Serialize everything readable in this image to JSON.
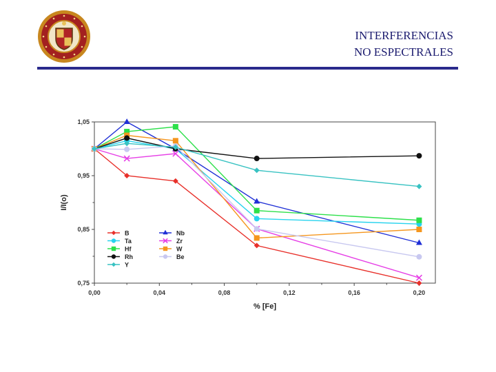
{
  "slide": {
    "title_line1": "INTERFERENCIAS",
    "title_line2": "NO ESPECTRALES"
  },
  "logo": {
    "name": "university-seal"
  },
  "colors": {
    "accent": "#2a2a8c"
  },
  "chart_data": {
    "type": "line",
    "title": "",
    "xlabel": "% [Fe]",
    "ylabel": "I/I(o)",
    "x": [
      0.0,
      0.02,
      0.05,
      0.1,
      0.2
    ],
    "xlim": [
      0.0,
      0.21
    ],
    "ylim": [
      0.75,
      1.05
    ],
    "xticks": [
      0.0,
      0.04,
      0.08,
      0.12,
      0.16,
      0.2
    ],
    "xtick_labels": [
      "0,00",
      "0,04",
      "0,08",
      "0,12",
      "0,16",
      "0,20"
    ],
    "yticks": [
      0.75,
      0.85,
      0.95,
      1.05
    ],
    "ytick_labels": [
      "0,75",
      "0,85",
      "0,95",
      "1,05"
    ],
    "grid": false,
    "legend_position": "bottom-left",
    "series": [
      {
        "name": "B",
        "color": "#e8302a",
        "marker": "diamond",
        "values": [
          1.0,
          0.95,
          0.94,
          0.82,
          0.75
        ]
      },
      {
        "name": "Nb",
        "color": "#1f2fd6",
        "marker": "triangle",
        "values": [
          1.0,
          1.05,
          1.0,
          0.902,
          0.825
        ]
      },
      {
        "name": "Ta",
        "color": "#27d3ee",
        "marker": "circle",
        "values": [
          1.0,
          1.015,
          1.0,
          0.87,
          0.86
        ]
      },
      {
        "name": "Zr",
        "color": "#e63fe6",
        "marker": "x",
        "values": [
          1.0,
          0.982,
          0.991,
          0.851,
          0.76
        ]
      },
      {
        "name": "Hf",
        "color": "#2ce04a",
        "marker": "square",
        "values": [
          1.0,
          1.032,
          1.041,
          0.885,
          0.867
        ]
      },
      {
        "name": "W",
        "color": "#f5961e",
        "marker": "square",
        "values": [
          1.0,
          1.025,
          1.015,
          0.834,
          0.85
        ]
      },
      {
        "name": "Rh",
        "color": "#111111",
        "marker": "circle",
        "values": [
          1.0,
          1.02,
          1.0,
          0.982,
          0.987
        ]
      },
      {
        "name": "Be",
        "color": "#c8c8f0",
        "marker": "circle",
        "values": [
          1.0,
          0.999,
          1.005,
          0.851,
          0.799
        ]
      },
      {
        "name": "Y",
        "color": "#38c2c2",
        "marker": "diamond",
        "values": [
          1.0,
          1.01,
          1.003,
          0.96,
          0.93
        ]
      }
    ]
  }
}
